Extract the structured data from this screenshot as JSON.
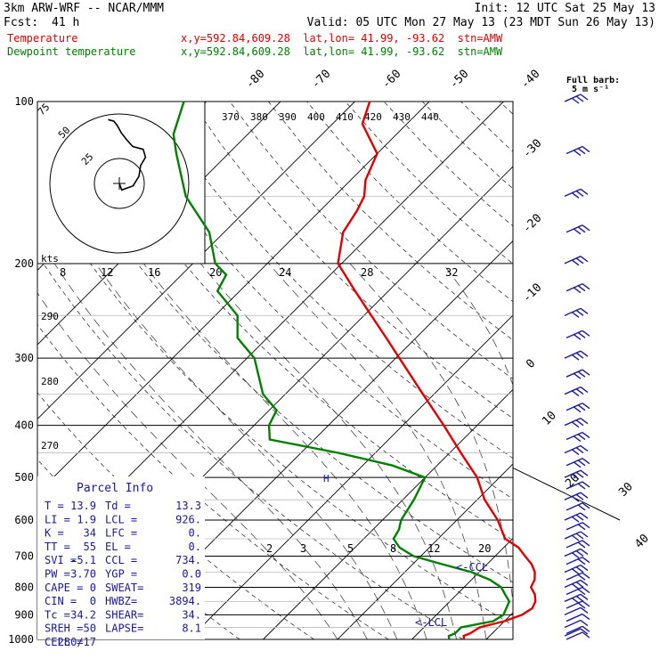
{
  "header": {
    "model": "3km ARW-WRF -- NCAR/MMM",
    "init": "Init: 12 UTC Sat 25 May 13",
    "fcst_label": "Fcst:",
    "fcst_value": "41 h",
    "valid": "Valid: 05 UTC Mon 27 May 13 (23 MDT Sun 26 May 13)",
    "temp_label": "Temperature",
    "dew_label": "Dewpoint temperature",
    "temp_loc": "x,y=592.84,609.28  lat,lon= 41.99, -93.62  stn=AMW",
    "dew_loc": "x,y=592.84,609.28  lat,lon= 41.99, -93.62  stn=AMW"
  },
  "colors": {
    "temperature": "#e00000",
    "dewpoint": "#008000",
    "text_blue": "#1a1a99"
  },
  "barb_legend": {
    "line1": "Full barb:",
    "line2": "5 m s⁻¹"
  },
  "hodograph": {
    "kts_label": "kts",
    "speed_rings": [
      "25",
      "50",
      "75"
    ]
  },
  "parcel_info": {
    "title": "Parcel Info",
    "rows": [
      [
        "T  =",
        "13.9",
        "Td =",
        "13.3"
      ],
      [
        "LI =",
        "1.9",
        "LCL =",
        "926."
      ],
      [
        "K  =",
        "34",
        "LFC =",
        "0."
      ],
      [
        "TT =",
        "55",
        "EL  =",
        "0."
      ],
      [
        "SVI =",
        "-5.1",
        "CCL =",
        "734."
      ],
      [
        "PW =",
        "3.70",
        "YGP =",
        "0.0"
      ],
      [
        "CAPE =",
        "0",
        "SWEAT=",
        "319"
      ],
      [
        "CIN =",
        "0",
        "HWBZ=",
        "3894."
      ],
      [
        "Tc =",
        "34.2",
        "SHEAR=",
        "34."
      ],
      [
        "SREH =",
        "50",
        "LAPSE=",
        "8.1"
      ],
      [
        "CELL =",
        "280/17",
        "",
        ""
      ]
    ]
  },
  "annotations": {
    "ccl": "<-CCL",
    "lcl": "<-LCL",
    "parcel_mark": "H"
  },
  "chart_data": {
    "type": "line",
    "chart_kind": "skew-T log-P thermodynamic diagram",
    "pressure_ticks": [
      100,
      200,
      300,
      400,
      500,
      600,
      700,
      800,
      900,
      1000
    ],
    "isotherm_labels": [
      "-80",
      "-70",
      "-60",
      "-50",
      "-40",
      "-30",
      "-20",
      "-10",
      "0",
      "10",
      "20",
      "30",
      "40"
    ],
    "theta_labels": [
      "370",
      "380",
      "390",
      "400",
      "410",
      "420",
      "430",
      "440"
    ],
    "theta_e_labels": [
      "290",
      "280",
      "270"
    ],
    "hodo_speed_labels": [
      "8",
      "12",
      "16",
      "20",
      "24",
      "28",
      "32"
    ],
    "mixing_ratio_labels": [
      "2",
      "3",
      "5",
      "8",
      "12",
      "20"
    ],
    "series": [
      {
        "name": "Temperature",
        "points": [
          [
            1000,
            17
          ],
          [
            985,
            16.5
          ],
          [
            975,
            17
          ],
          [
            950,
            17.5
          ],
          [
            925,
            20
          ],
          [
            900,
            21.5
          ],
          [
            875,
            22
          ],
          [
            850,
            21.5
          ],
          [
            825,
            20.5
          ],
          [
            800,
            19
          ],
          [
            775,
            18.5
          ],
          [
            750,
            17.5
          ],
          [
            725,
            16
          ],
          [
            700,
            14
          ],
          [
            675,
            12
          ],
          [
            650,
            9
          ],
          [
            600,
            5.5
          ],
          [
            550,
            1
          ],
          [
            500,
            -3
          ],
          [
            450,
            -8.5
          ],
          [
            400,
            -14.5
          ],
          [
            350,
            -21.5
          ],
          [
            300,
            -29.5
          ],
          [
            275,
            -34
          ],
          [
            250,
            -39
          ],
          [
            225,
            -44.5
          ],
          [
            200,
            -50.5
          ],
          [
            175,
            -54
          ],
          [
            160,
            -55
          ],
          [
            150,
            -56
          ],
          [
            140,
            -58
          ],
          [
            125,
            -60
          ],
          [
            110,
            -66
          ],
          [
            100,
            -68
          ]
        ]
      },
      {
        "name": "Dewpoint temperature",
        "points": [
          [
            1000,
            15
          ],
          [
            985,
            14.5
          ],
          [
            975,
            15
          ],
          [
            950,
            15
          ],
          [
            925,
            18.5
          ],
          [
            900,
            19
          ],
          [
            875,
            18.5
          ],
          [
            850,
            18
          ],
          [
            825,
            16.5
          ],
          [
            800,
            15
          ],
          [
            775,
            12.5
          ],
          [
            750,
            9
          ],
          [
            725,
            4
          ],
          [
            700,
            -1
          ],
          [
            675,
            -4
          ],
          [
            650,
            -6
          ],
          [
            625,
            -6.5
          ],
          [
            600,
            -7.5
          ],
          [
            550,
            -8.5
          ],
          [
            500,
            -10
          ],
          [
            475,
            -16
          ],
          [
            450,
            -25
          ],
          [
            425,
            -36
          ],
          [
            400,
            -38
          ],
          [
            375,
            -39
          ],
          [
            350,
            -43
          ],
          [
            300,
            -49
          ],
          [
            275,
            -54
          ],
          [
            250,
            -57
          ],
          [
            225,
            -63
          ],
          [
            210,
            -64
          ],
          [
            200,
            -67
          ],
          [
            175,
            -72
          ],
          [
            150,
            -80
          ],
          [
            125,
            -87
          ],
          [
            115,
            -90
          ],
          [
            100,
            -93
          ]
        ]
      }
    ],
    "wind_barb_pressures": [
      1000,
      985,
      975,
      950,
      925,
      900,
      875,
      850,
      825,
      800,
      775,
      750,
      725,
      700,
      675,
      650,
      625,
      600,
      575,
      550,
      525,
      500,
      475,
      450,
      425,
      400,
      375,
      350,
      325,
      300,
      275,
      250,
      225,
      200,
      175,
      150,
      125,
      100
    ],
    "hodograph_path_speed_dir": [
      [
        0,
        0
      ],
      [
        3,
        340
      ],
      [
        6,
        280
      ],
      [
        9,
        250
      ],
      [
        12,
        230
      ],
      [
        16,
        225
      ],
      [
        18,
        215
      ],
      [
        17,
        200
      ],
      [
        19,
        190
      ],
      [
        22,
        182
      ],
      [
        25,
        178
      ],
      [
        27,
        175
      ],
      [
        28,
        170
      ]
    ],
    "grid": true
  }
}
